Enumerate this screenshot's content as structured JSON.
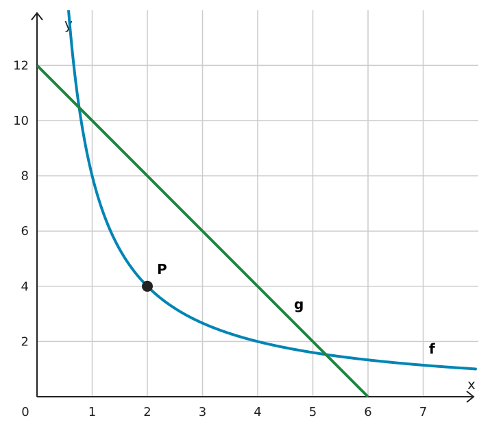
{
  "chart_data": {
    "type": "line",
    "title": "",
    "xlabel": "x",
    "ylabel": "y",
    "origin_label": "0",
    "xlim": [
      0,
      7.95
    ],
    "ylim": [
      0,
      14
    ],
    "x_ticks": [
      1,
      2,
      3,
      4,
      5,
      6,
      7
    ],
    "y_ticks": [
      2,
      4,
      6,
      8,
      10,
      12
    ],
    "grid": true,
    "series": [
      {
        "name": "f",
        "color": "#0085b5",
        "formula": "y = 8 / x",
        "points": [
          [
            0.57,
            14.0
          ],
          [
            0.6,
            13.33
          ],
          [
            0.7,
            11.43
          ],
          [
            0.8,
            10.0
          ],
          [
            1.0,
            8.0
          ],
          [
            1.25,
            6.4
          ],
          [
            1.5,
            5.33
          ],
          [
            2.0,
            4.0
          ],
          [
            2.5,
            3.2
          ],
          [
            3.0,
            2.67
          ],
          [
            3.5,
            2.29
          ],
          [
            4.0,
            2.0
          ],
          [
            4.5,
            1.78
          ],
          [
            5.0,
            1.6
          ],
          [
            5.5,
            1.45
          ],
          [
            6.0,
            1.33
          ],
          [
            6.5,
            1.23
          ],
          [
            7.0,
            1.14
          ],
          [
            7.5,
            1.07
          ],
          [
            7.95,
            1.01
          ]
        ]
      },
      {
        "name": "g",
        "color": "#1e8440",
        "formula": "y = -2x + 12",
        "points": [
          [
            0,
            12
          ],
          [
            6,
            0
          ]
        ]
      }
    ],
    "marked_point": {
      "name": "P",
      "x": 2,
      "y": 4,
      "color": "#222222"
    }
  }
}
